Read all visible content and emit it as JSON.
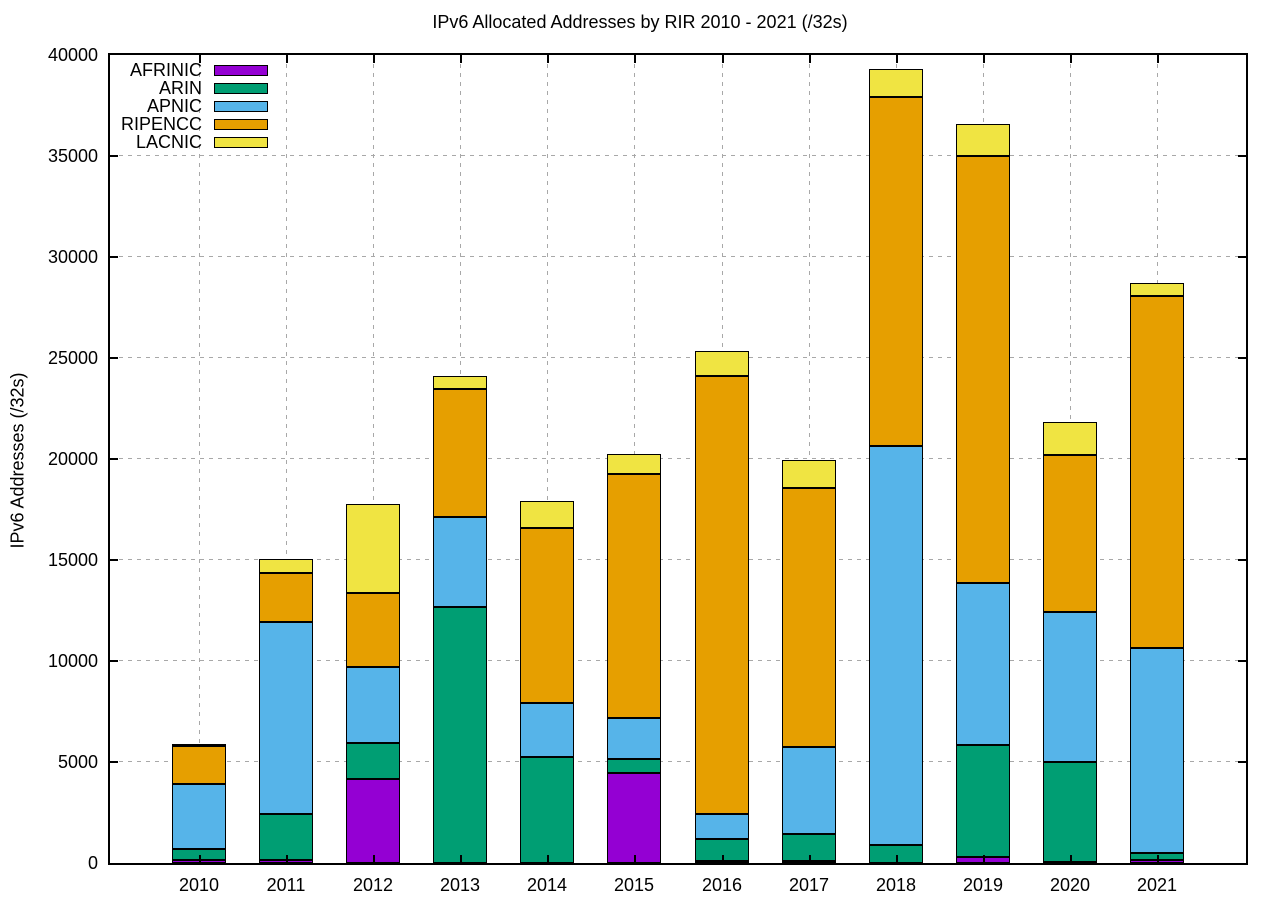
{
  "title": "IPv6 Allocated Addresses by RIR 2010 - 2021 (/32s)",
  "y_axis_title": "IPv6 Addresses (/32s)",
  "legend": {
    "position": "top-left",
    "entries": [
      "AFRINIC",
      "ARIN",
      "APNIC",
      "RIPENCC",
      "LACNIC"
    ]
  },
  "colors": {
    "AFRINIC": "#9400d3",
    "ARIN": "#009e73",
    "APNIC": "#56b4e9",
    "RIPENCC": "#e69f00",
    "LACNIC": "#f0e442",
    "border": "#000000",
    "grid": "#a8a8a8",
    "background": "#ffffff"
  },
  "chart_data": {
    "type": "bar",
    "stacked": true,
    "title": "IPv6 Allocated Addresses by RIR 2010 - 2021 (/32s)",
    "xlabel": "",
    "ylabel": "IPv6 Addresses (/32s)",
    "ylim": [
      0,
      40000
    ],
    "ytick_step": 5000,
    "yticks": [
      0,
      5000,
      10000,
      15000,
      20000,
      25000,
      30000,
      35000,
      40000
    ],
    "grid": true,
    "legend_position": "top-left",
    "categories": [
      "2010",
      "2011",
      "2012",
      "2013",
      "2014",
      "2015",
      "2016",
      "2017",
      "2018",
      "2019",
      "2020",
      "2021"
    ],
    "series": [
      {
        "name": "AFRINIC",
        "color": "#9400d3",
        "values": [
          150,
          160,
          4170,
          0,
          0,
          4440,
          100,
          110,
          0,
          320,
          60,
          150
        ]
      },
      {
        "name": "ARIN",
        "color": "#009e73",
        "values": [
          550,
          2250,
          1750,
          12660,
          5260,
          690,
          1080,
          1340,
          890,
          5520,
          4940,
          360
        ]
      },
      {
        "name": "APNIC",
        "color": "#56b4e9",
        "values": [
          3200,
          9530,
          3770,
          4450,
          2680,
          2060,
          1230,
          4280,
          19730,
          8020,
          7440,
          10140
        ]
      },
      {
        "name": "RIPENCC",
        "color": "#e69f00",
        "values": [
          1880,
          2430,
          3660,
          6340,
          8630,
          12070,
          21700,
          12830,
          17310,
          21150,
          7760,
          17400
        ]
      },
      {
        "name": "LACNIC",
        "color": "#f0e442",
        "values": [
          40,
          660,
          4420,
          650,
          1330,
          990,
          1220,
          1390,
          1360,
          1560,
          1640,
          640
        ]
      }
    ],
    "totals": [
      5820,
      15030,
      17770,
      24100,
      17900,
      20250,
      25330,
      19950,
      39290,
      36570,
      21840,
      28690
    ]
  }
}
